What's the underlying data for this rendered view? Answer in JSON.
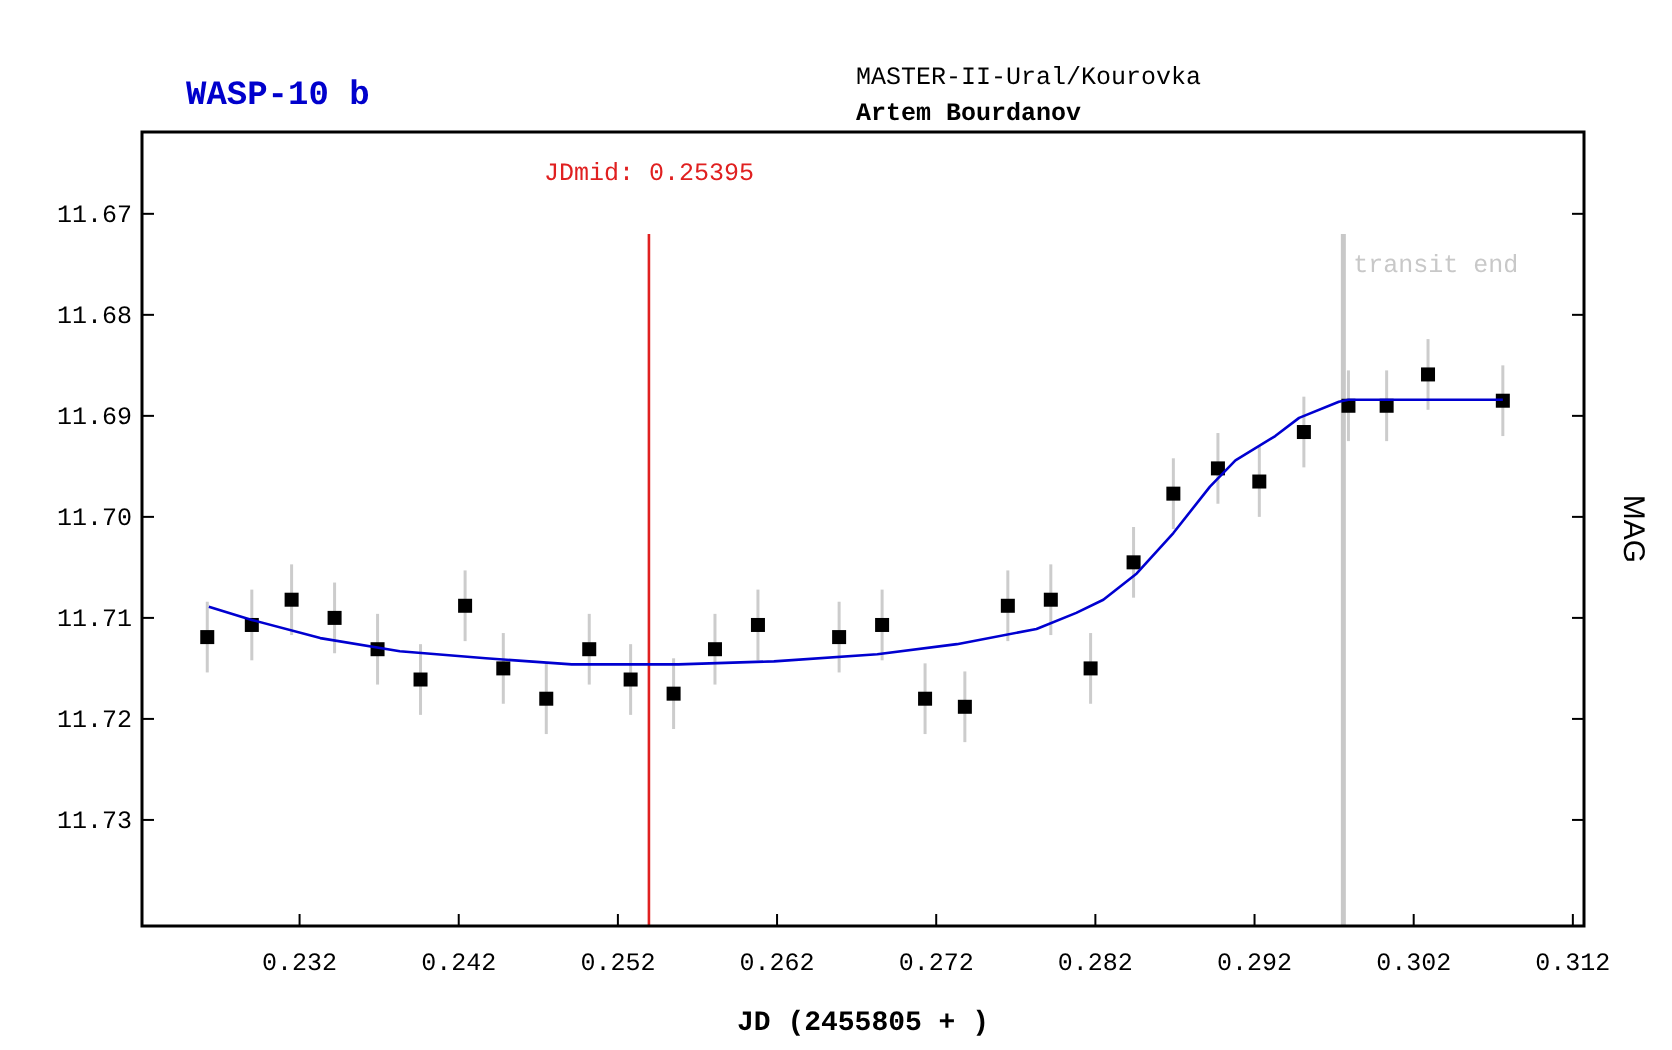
{
  "chart_data": {
    "type": "scatter",
    "title": "WASP-10 b",
    "xlabel": "JD (2455805 + )",
    "ylabel": "MAG",
    "annotations": [
      "MASTER-II-Ural/Kourovka",
      "Artem Bourdanov"
    ],
    "xlim": [
      0.2221,
      0.3127
    ],
    "ylim": [
      11.7405,
      11.6619
    ],
    "xticks": [
      0.232,
      0.242,
      0.252,
      0.262,
      0.272,
      0.282,
      0.292,
      0.302,
      0.312
    ],
    "yticks": [
      11.67,
      11.68,
      11.69,
      {
        "value": 11.7,
        "label": "11.70"
      },
      11.71,
      11.72,
      11.73
    ],
    "grid": false,
    "ref_lines": [
      {
        "axis": "x",
        "value": 0.25395,
        "label": "JDmid: 0.25395",
        "color": "#e02020"
      },
      {
        "axis": "x",
        "value": 0.29758,
        "label": "transit end",
        "color": "#c8c8c8"
      }
    ],
    "series": [
      {
        "color": "#000000",
        "marker": "square",
        "x": [
          0.2262,
          0.229,
          0.2315,
          0.2342,
          0.2369,
          0.2396,
          0.2424,
          0.2448,
          0.2475,
          0.2502,
          0.2528,
          0.2555,
          0.2581,
          0.2608,
          0.2659,
          0.2686,
          0.2713,
          0.2738,
          0.2765,
          0.2792,
          0.2817,
          0.2844,
          0.2869,
          0.2897,
          0.2923,
          0.2951,
          0.2979,
          0.3003,
          0.3029,
          0.3076
        ],
        "values": [
          11.7119,
          11.7107,
          11.7082,
          11.71,
          11.7131,
          11.7161,
          11.7088,
          11.715,
          11.718,
          11.7131,
          11.7161,
          11.7175,
          11.7131,
          11.7107,
          11.7119,
          11.7107,
          11.718,
          11.7188,
          11.7088,
          11.7082,
          11.715,
          11.7045,
          11.6977,
          11.6952,
          11.6965,
          11.6916,
          11.689,
          11.689,
          11.6859,
          11.6885
        ],
        "errors": [
          0.0035,
          0.0035,
          0.0035,
          0.0035,
          0.0035,
          0.0035,
          0.0035,
          0.0035,
          0.0035,
          0.0035,
          0.0035,
          0.0035,
          0.0035,
          0.0035,
          0.0035,
          0.0035,
          0.0035,
          0.0035,
          0.0035,
          0.0035,
          0.0035,
          0.0035,
          0.0035,
          0.0035,
          0.0035,
          0.0035,
          0.0035,
          0.0035,
          0.0035,
          0.0035
        ]
      },
      {
        "type": "line",
        "color": "#0000d0",
        "marker": "none",
        "x": [
          0.2263,
          0.229,
          0.2333,
          0.2383,
          0.2437,
          0.2491,
          0.2558,
          0.2618,
          0.2683,
          0.2733,
          0.2783,
          0.2808,
          0.2825,
          0.2846,
          0.2869,
          0.2892,
          0.2908,
          0.2933,
          0.2948,
          0.2973,
          0.2979,
          0.3076
        ],
        "values": [
          11.7089,
          11.7102,
          11.712,
          11.7133,
          11.714,
          11.7146,
          11.7146,
          11.7143,
          11.7136,
          11.7126,
          11.7111,
          11.7095,
          11.7082,
          11.7056,
          11.7016,
          11.697,
          11.6944,
          11.692,
          11.6902,
          11.6886,
          11.6884,
          11.6884
        ]
      }
    ]
  }
}
